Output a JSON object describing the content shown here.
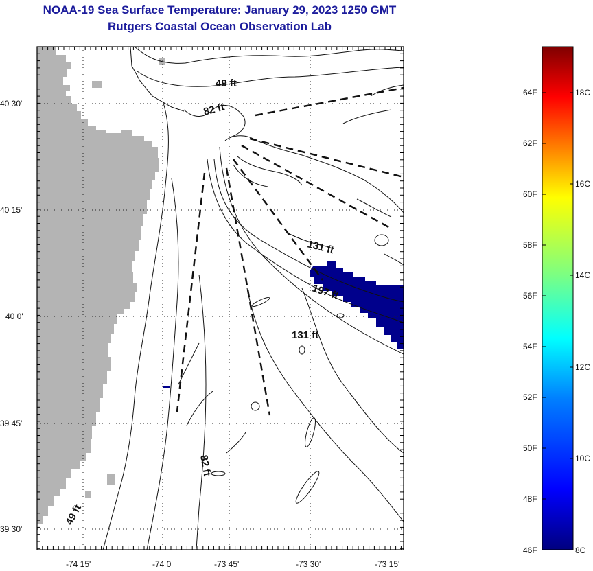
{
  "title": "NOAA-19 Sea Surface Temperature:  January 29, 2023 1250 GMT",
  "subtitle": "Rutgers Coastal Ocean Observation Lab",
  "map": {
    "lon_labels": [
      "-74 15'",
      "-74 0'",
      "-73 45'",
      "-73 30'",
      "-73 15'"
    ],
    "lat_labels": [
      "40 30'",
      "40 15'",
      "40 0'",
      "39 45'",
      "39 30'"
    ],
    "isobath_labels": [
      "49 ft",
      "82 ft",
      "131 ft",
      "197 ft",
      "131 ft",
      "82 ft",
      "49 ft"
    ],
    "land_color": "#b4b4b4",
    "cold_sst_color": "#00008c"
  },
  "colorbar": {
    "f_labels": [
      "64F",
      "62F",
      "60F",
      "58F",
      "56F",
      "54F",
      "52F",
      "50F",
      "48F",
      "46F"
    ],
    "c_labels": [
      "18C",
      "16C",
      "14C",
      "12C",
      "10C",
      "8C"
    ],
    "colors": [
      "#00007f",
      "#0000ff",
      "#007fff",
      "#00ffff",
      "#7fff7f",
      "#ffff00",
      "#ff7f00",
      "#ff0000",
      "#7f0000"
    ]
  }
}
